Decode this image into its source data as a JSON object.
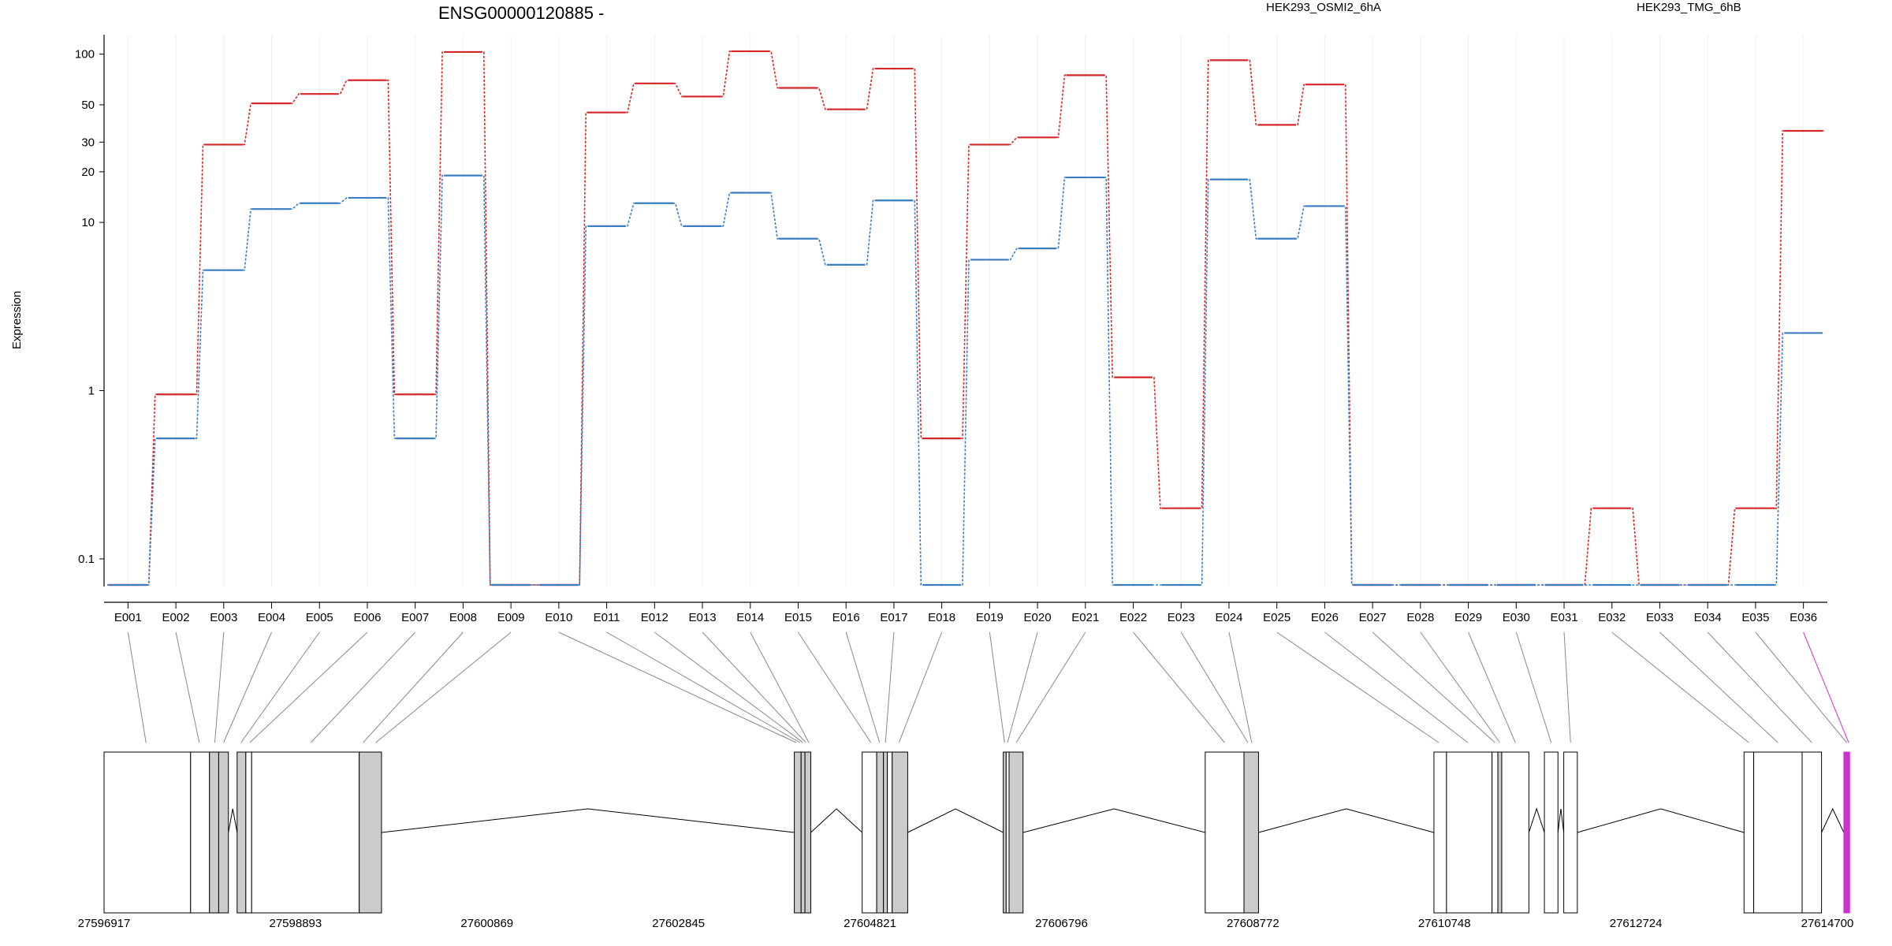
{
  "chart_data": {
    "type": "line",
    "title": "ENSG00000120885 -",
    "ylabel": "Expression",
    "yscale": "log",
    "yticks": [
      "0.1",
      "1",
      "10",
      "20",
      "30",
      "50",
      "100"
    ],
    "ytick_values": [
      0.1,
      1,
      10,
      20,
      30,
      50,
      100
    ],
    "legend_placement": "top",
    "grid": "vertical-light",
    "categories": [
      "E001",
      "E002",
      "E003",
      "E004",
      "E005",
      "E006",
      "E007",
      "E008",
      "E009",
      "E010",
      "E011",
      "E012",
      "E013",
      "E014",
      "E015",
      "E016",
      "E017",
      "E018",
      "E019",
      "E020",
      "E021",
      "E022",
      "E023",
      "E024",
      "E025",
      "E026",
      "E027",
      "E028",
      "E029",
      "E030",
      "E031",
      "E032",
      "E033",
      "E034",
      "E035",
      "E036"
    ],
    "series": [
      {
        "name": "HEK293_OSMI2_6hA",
        "color": "#d62728",
        "values": [
          0.07,
          0.95,
          29,
          51,
          58,
          70,
          0.95,
          103,
          0.07,
          0.07,
          45,
          67,
          56,
          104,
          63,
          47,
          82,
          0.52,
          29,
          32,
          75,
          1.2,
          0.2,
          92,
          38,
          66,
          0.07,
          0.07,
          0.07,
          0.07,
          0.07,
          0.2,
          0.07,
          0.07,
          0.2,
          35
        ]
      },
      {
        "name": "HEK293_TMG_6hB",
        "color": "#3a7ebf",
        "values": [
          0.07,
          0.52,
          5.2,
          12,
          13,
          14,
          0.52,
          19,
          0.07,
          0.07,
          9.5,
          13,
          9.5,
          15,
          8,
          5.6,
          13.5,
          0.07,
          6,
          7,
          18.5,
          0.07,
          0.07,
          18,
          8,
          12.5,
          0.07,
          0.07,
          0.07,
          0.07,
          0.07,
          0.07,
          0.07,
          0.07,
          0.07,
          2.2
        ]
      }
    ],
    "genomic_axis": {
      "tick_labels": [
        "27596917",
        "27598893",
        "27600869",
        "27602845",
        "27604821",
        "27606796",
        "27608772",
        "27610748",
        "27612724",
        "27614700"
      ],
      "range": [
        27596917,
        27614700
      ]
    },
    "exons": [
      {
        "start": 27596917,
        "end": 27597810
      },
      {
        "start": 27597810,
        "end": 27598005
      },
      {
        "start": 27598005,
        "end": 27598100
      },
      {
        "start": 27598100,
        "end": 27598200
      },
      {
        "start": 27598290,
        "end": 27598380
      },
      {
        "start": 27598380,
        "end": 27598440
      },
      {
        "start": 27598440,
        "end": 27599550
      },
      {
        "start": 27599550,
        "end": 27599780
      },
      {
        "start": 27604040,
        "end": 27604110
      },
      {
        "start": 27604110,
        "end": 27604150
      },
      {
        "start": 27604150,
        "end": 27604210
      },
      {
        "start": 27604740,
        "end": 27604890
      },
      {
        "start": 27604890,
        "end": 27604960
      },
      {
        "start": 27604960,
        "end": 27605000
      },
      {
        "start": 27605000,
        "end": 27605050
      },
      {
        "start": 27605050,
        "end": 27605210
      },
      {
        "start": 27606196,
        "end": 27606226
      },
      {
        "start": 27606226,
        "end": 27606256
      },
      {
        "start": 27606256,
        "end": 27606400
      },
      {
        "start": 27608280,
        "end": 27608680
      },
      {
        "start": 27608680,
        "end": 27608830
      },
      {
        "start": 27610640,
        "end": 27610770
      },
      {
        "start": 27610770,
        "end": 27611240
      },
      {
        "start": 27611240,
        "end": 27611300
      },
      {
        "start": 27611300,
        "end": 27611340
      },
      {
        "start": 27611340,
        "end": 27611620
      },
      {
        "start": 27611780,
        "end": 27611920
      },
      {
        "start": 27611980,
        "end": 27612120
      },
      {
        "start": 27613840,
        "end": 27613940
      },
      {
        "start": 27613940,
        "end": 27614440
      },
      {
        "start": 27614440,
        "end": 27614640
      },
      {
        "start": 27614870,
        "end": 27614930
      }
    ],
    "exon_highlight": {
      "E003": true,
      "E004": true,
      "E005": true,
      "E008": true,
      "E009": true,
      "E010": true,
      "E011": true,
      "E012": true,
      "E014": true,
      "E016": true,
      "E017": true,
      "E018": true,
      "E019": true,
      "E021": true,
      "E024": true,
      "E028": true
    },
    "highlight_color": "#cc33cc",
    "exon_for_bin": [
      {
        "bin": "E001",
        "x": 27597350
      },
      {
        "bin": "E002",
        "x": 27597900
      },
      {
        "bin": "E003",
        "x": 27598060
      },
      {
        "bin": "E004",
        "x": 27598150
      },
      {
        "bin": "E005",
        "x": 27598330
      },
      {
        "bin": "E006",
        "x": 27598420
      },
      {
        "bin": "E007",
        "x": 27599050
      },
      {
        "bin": "E008",
        "x": 27599590
      },
      {
        "bin": "E009",
        "x": 27599720
      },
      {
        "bin": "E010",
        "x": 27604060
      },
      {
        "bin": "E011",
        "x": 27604100
      },
      {
        "bin": "E012",
        "x": 27604130
      },
      {
        "bin": "E013",
        "x": 27604160
      },
      {
        "bin": "E014",
        "x": 27604190
      },
      {
        "bin": "E015",
        "x": 27604830
      },
      {
        "bin": "E016",
        "x": 27604920
      },
      {
        "bin": "E017",
        "x": 27604980
      },
      {
        "bin": "E018",
        "x": 27605120
      },
      {
        "bin": "E019",
        "x": 27606210
      },
      {
        "bin": "E020",
        "x": 27606240
      },
      {
        "bin": "E021",
        "x": 27606330
      },
      {
        "bin": "E022",
        "x": 27608480
      },
      {
        "bin": "E023",
        "x": 27608720
      },
      {
        "bin": "E024",
        "x": 27608760
      },
      {
        "bin": "E025",
        "x": 27610690
      },
      {
        "bin": "E026",
        "x": 27610990
      },
      {
        "bin": "E027",
        "x": 27611270
      },
      {
        "bin": "E028",
        "x": 27611320
      },
      {
        "bin": "E029",
        "x": 27611480
      },
      {
        "bin": "E030",
        "x": 27611850
      },
      {
        "bin": "E031",
        "x": 27612050
      },
      {
        "bin": "E032",
        "x": 27613890
      },
      {
        "bin": "E033",
        "x": 27614190
      },
      {
        "bin": "E034",
        "x": 27614540
      },
      {
        "bin": "E035",
        "x": 27614900
      },
      {
        "bin": "E036",
        "x": 27614920
      }
    ]
  }
}
